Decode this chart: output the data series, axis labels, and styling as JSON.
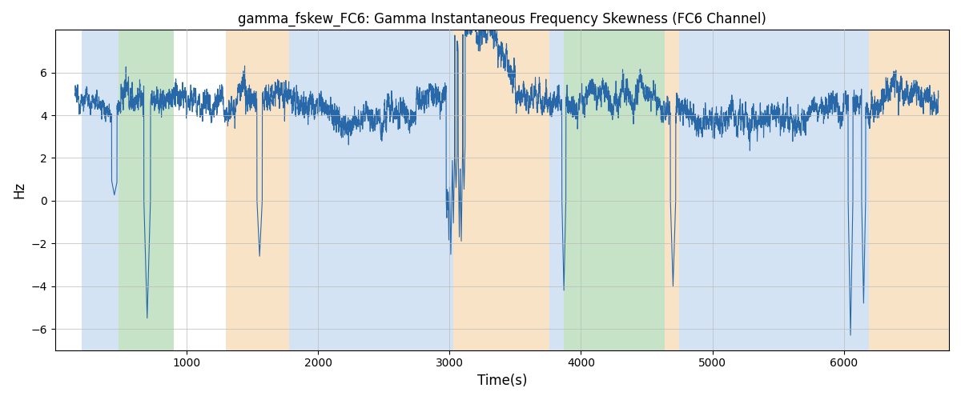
{
  "title": "gamma_fskew_FC6: Gamma Instantaneous Frequency Skewness (FC6 Channel)",
  "xlabel": "Time(s)",
  "ylabel": "Hz",
  "ylim": [
    -7,
    8
  ],
  "xlim": [
    0,
    6800
  ],
  "line_color": "#2868a8",
  "line_width": 0.8,
  "bg_regions": [
    {
      "start": 200,
      "end": 480,
      "color": "#aac8e8",
      "alpha": 0.5
    },
    {
      "start": 480,
      "end": 900,
      "color": "#90c890",
      "alpha": 0.5
    },
    {
      "start": 1300,
      "end": 1780,
      "color": "#f5c890",
      "alpha": 0.5
    },
    {
      "start": 1780,
      "end": 2960,
      "color": "#aac8e8",
      "alpha": 0.5
    },
    {
      "start": 2960,
      "end": 3030,
      "color": "#aac8e8",
      "alpha": 0.5
    },
    {
      "start": 3030,
      "end": 3760,
      "color": "#f5c890",
      "alpha": 0.5
    },
    {
      "start": 3760,
      "end": 3870,
      "color": "#aac8e8",
      "alpha": 0.5
    },
    {
      "start": 3870,
      "end": 4640,
      "color": "#90c890",
      "alpha": 0.5
    },
    {
      "start": 4640,
      "end": 4750,
      "color": "#f5c890",
      "alpha": 0.5
    },
    {
      "start": 4750,
      "end": 5720,
      "color": "#aac8e8",
      "alpha": 0.5
    },
    {
      "start": 5720,
      "end": 6190,
      "color": "#aac8e8",
      "alpha": 0.5
    },
    {
      "start": 6190,
      "end": 6800,
      "color": "#f5c890",
      "alpha": 0.5
    }
  ],
  "grid_color": "#bbbbbb",
  "seed": 12345,
  "n_points": 6600
}
